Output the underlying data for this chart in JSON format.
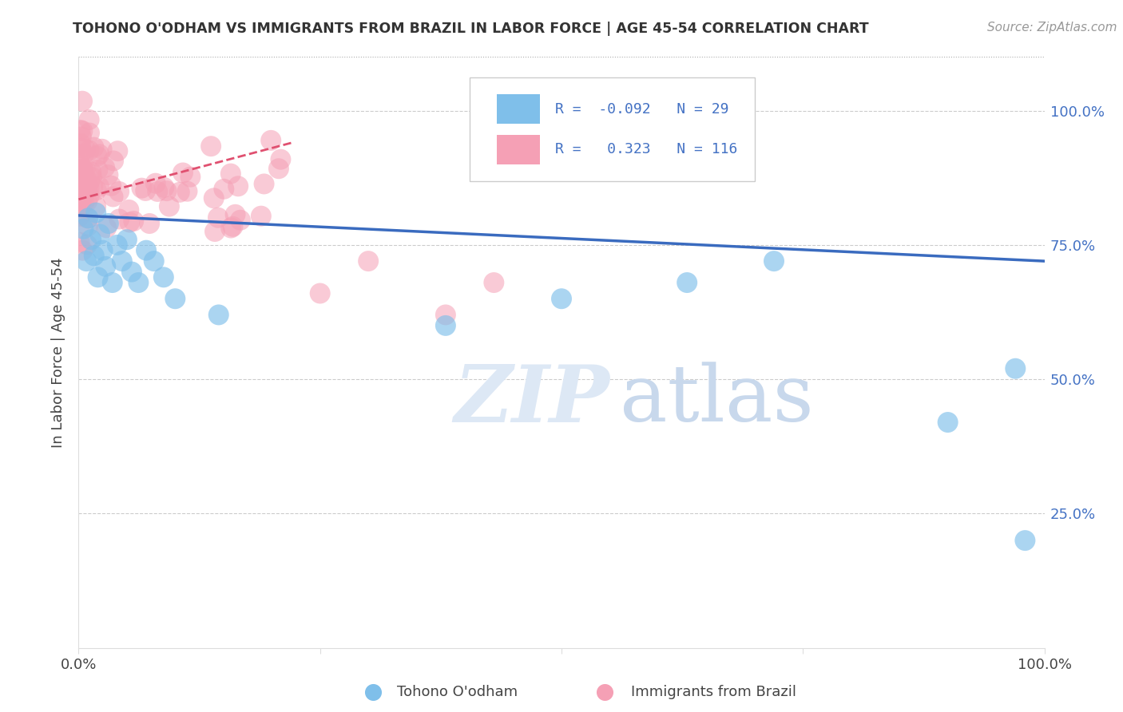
{
  "title": "TOHONO O'ODHAM VS IMMIGRANTS FROM BRAZIL IN LABOR FORCE | AGE 45-54 CORRELATION CHART",
  "source": "Source: ZipAtlas.com",
  "ylabel": "In Labor Force | Age 45-54",
  "xlim": [
    0.0,
    1.0
  ],
  "ylim": [
    0.0,
    1.1
  ],
  "blue_R": -0.092,
  "blue_N": 29,
  "pink_R": 0.323,
  "pink_N": 116,
  "blue_label": "Tohono O'odham",
  "pink_label": "Immigrants from Brazil",
  "blue_color": "#7fbfea",
  "pink_color": "#f5a0b5",
  "blue_line_color": "#3a6bbf",
  "pink_line_color": "#e05070",
  "watermark_color": "#dde8f5",
  "background_color": "#ffffff"
}
